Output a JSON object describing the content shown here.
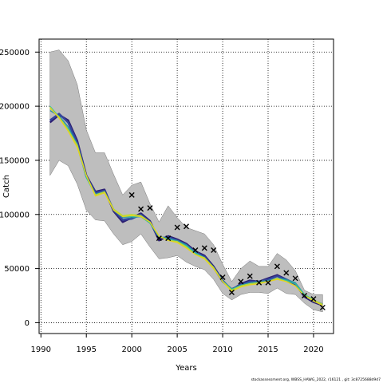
{
  "footer_text": "stockassessment.org, WBSS_HAWG_2022, r16121 , git: 3c8725688d9d7",
  "chart_data": {
    "type": "line",
    "title": "",
    "xlabel": "Years",
    "ylabel": "Catch",
    "xlim": [
      1989.8,
      2022.2
    ],
    "ylim": [
      -10000,
      262000
    ],
    "x_ticks": [
      1990,
      1995,
      2000,
      2005,
      2010,
      2015,
      2020
    ],
    "y_ticks": [
      0,
      50000,
      100000,
      150000,
      200000,
      250000
    ],
    "y_tick_labels": [
      "0",
      "50000",
      "100000",
      "150000",
      "200000",
      "250000"
    ],
    "grid": true,
    "legend": "none",
    "band": {
      "color": "#bebebe",
      "x": [
        1991,
        1992,
        1993,
        1994,
        1995,
        1996,
        1997,
        1998,
        1999,
        2000,
        2001,
        2002,
        2003,
        2004,
        2005,
        2006,
        2007,
        2008,
        2009,
        2010,
        2011,
        2012,
        2013,
        2014,
        2015,
        2016,
        2017,
        2018,
        2019,
        2020,
        2021
      ],
      "upper": [
        250000,
        252000,
        242000,
        220000,
        178000,
        157000,
        157000,
        137000,
        118000,
        127000,
        130000,
        110000,
        93000,
        108000,
        97000,
        88000,
        85000,
        82000,
        72000,
        54000,
        38000,
        50000,
        57000,
        52000,
        52000,
        64000,
        58000,
        48000,
        30000,
        26000,
        26000
      ],
      "lower": [
        136000,
        150000,
        145000,
        128000,
        104000,
        95000,
        94000,
        82000,
        72000,
        75000,
        82000,
        70000,
        59000,
        60000,
        62000,
        56000,
        52000,
        49000,
        40000,
        27000,
        21000,
        26000,
        28000,
        28000,
        27000,
        32000,
        27000,
        26000,
        18000,
        12000,
        10000
      ]
    },
    "series": [
      {
        "color": "#2d1f73",
        "values": [
          185000,
          192000,
          187000,
          168000,
          136000,
          121000,
          123000,
          103000,
          93000,
          97000,
          101000,
          94000,
          76000,
          80000,
          77000,
          73000,
          66000,
          62000,
          52000,
          39000,
          30000,
          36000,
          39000,
          38000,
          41000,
          44000,
          40000,
          36000,
          24000,
          19000,
          16000
        ]
      },
      {
        "color": "#33459c",
        "values": [
          187000,
          193000,
          185000,
          166000,
          135000,
          120000,
          122000,
          104000,
          95000,
          96000,
          100000,
          93000,
          78000,
          79000,
          76000,
          72000,
          65000,
          61000,
          51000,
          38000,
          31000,
          35000,
          38000,
          38000,
          40000,
          43000,
          40000,
          35000,
          25000,
          20000,
          17000
        ]
      },
      {
        "color": "#2b8ba8",
        "values": [
          196000,
          191000,
          181000,
          165000,
          135000,
          119000,
          121000,
          104000,
          97000,
          97000,
          98000,
          92000,
          79000,
          78000,
          76000,
          72000,
          65000,
          60000,
          51000,
          39000,
          31000,
          35000,
          37000,
          38000,
          39000,
          41000,
          40000,
          37000,
          26000,
          21000,
          17000
        ]
      },
      {
        "color": "#34c29a",
        "values": [
          200000,
          190000,
          179000,
          163000,
          134000,
          118000,
          120000,
          105000,
          98000,
          98000,
          98000,
          92000,
          80000,
          77000,
          75000,
          71000,
          64000,
          60000,
          51000,
          38000,
          31000,
          34000,
          36000,
          37000,
          38000,
          41000,
          39000,
          36000,
          26000,
          21000,
          17000
        ]
      },
      {
        "color": "#b6dc32",
        "values": [
          198000,
          190000,
          178000,
          164000,
          136000,
          118000,
          121000,
          105000,
          99000,
          100000,
          99000,
          93000,
          80000,
          76000,
          75000,
          70000,
          63000,
          60000,
          51000,
          38000,
          30000,
          34000,
          36000,
          37000,
          38000,
          41000,
          38000,
          34000,
          25000,
          21000,
          17000
        ]
      },
      {
        "color": "#e6d21e",
        "values": [
          199000,
          189000,
          177000,
          162000,
          136000,
          117000,
          120000,
          104000,
          98000,
          99000,
          98000,
          93000,
          80000,
          76000,
          74000,
          69000,
          63000,
          59000,
          50000,
          38000,
          29000,
          33000,
          35000,
          36000,
          38000,
          40000,
          38000,
          34000,
          25000,
          20000,
          16000
        ]
      }
    ],
    "observations": {
      "marker": "x",
      "x": [
        2000,
        2001,
        2002,
        2003,
        2004,
        2005,
        2006,
        2007,
        2008,
        2009,
        2010,
        2011,
        2012,
        2013,
        2014,
        2015,
        2016,
        2017,
        2018,
        2019,
        2020,
        2021
      ],
      "y": [
        118000,
        105000,
        106000,
        78000,
        78000,
        88000,
        89000,
        67000,
        69000,
        67000,
        42000,
        28000,
        38000,
        43000,
        37000,
        37000,
        52000,
        46000,
        41000,
        25000,
        22000,
        14000
      ]
    }
  }
}
